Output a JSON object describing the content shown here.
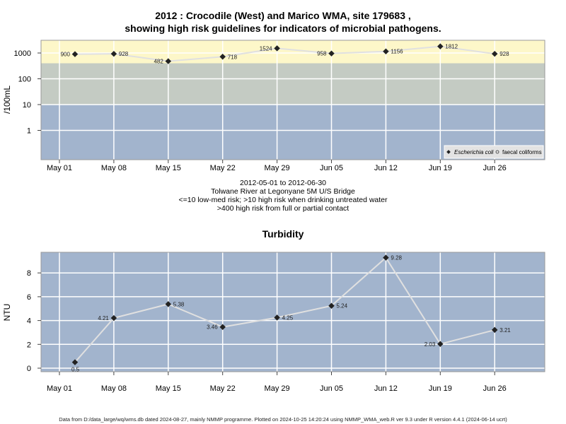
{
  "top": {
    "title_line1": "2012 : Crocodile (West) and Marico WMA, site 179683 ,",
    "title_line2": "showing high risk guidelines for indicators of microbial pathogens.",
    "caption": [
      "2012-05-01 to 2012-06-30",
      "Tolwane River at Legonyane 5M U/S Bridge",
      "<=10 low-med risk; >10 high risk when drinking untreated water",
      ">400 high risk from full or partial contact"
    ]
  },
  "bottom": {
    "title": "Turbidity"
  },
  "footer": "Data from D:/data_large/wq/wms.db dated 2024-08-27, mainly NMMP programme. Plotted on 2024-10-25 14:20:24 using NMMP_WMA_web.R ver 9.3 under R version 4.4.1 (2024-06-14 ucrt)",
  "colors": {
    "band_low": "#a2b4cd",
    "band_mid": "#c4cbc3",
    "band_high": "#fdf7c9",
    "plot_bg": "#a2b4cd",
    "grid": "#ffffff",
    "line": "#e0e0e0",
    "point": "#222222"
  },
  "chart_data": [
    {
      "type": "line",
      "ylabel": "/100mL",
      "yscale": "log",
      "x_ticks": [
        "May 01",
        "May 08",
        "May 15",
        "May 22",
        "May 29",
        "Jun 05",
        "Jun 12",
        "Jun 19",
        "Jun 26"
      ],
      "y_ticks": [
        "1",
        "10",
        "100",
        "1000"
      ],
      "risk_bands": [
        {
          "from": 0,
          "to": 10,
          "color": "#a2b4cd"
        },
        {
          "from": 10,
          "to": 400,
          "color": "#c4cbc3"
        },
        {
          "from": 400,
          "to": 3500,
          "color": "#fdf7c9"
        }
      ],
      "legend": {
        "placement": "bottom-right",
        "entries": [
          "Escherichia coli",
          "faecal coliforms"
        ]
      },
      "series": [
        {
          "name": "Escherichia coli",
          "points": [
            {
              "x": "2012-05-03",
              "y": 900,
              "label": "900",
              "label_side": "left"
            },
            {
              "x": "2012-05-08",
              "y": 928,
              "label": "928",
              "label_side": "right"
            },
            {
              "x": "2012-05-15",
              "y": 482,
              "label": "482",
              "label_side": "left"
            },
            {
              "x": "2012-05-22",
              "y": 718,
              "label": "718",
              "label_side": "right"
            },
            {
              "x": "2012-05-29",
              "y": 1524,
              "label": "1524",
              "label_side": "left"
            },
            {
              "x": "2012-06-05",
              "y": 958,
              "label": "958",
              "label_side": "left"
            },
            {
              "x": "2012-06-12",
              "y": 1156,
              "label": "1156",
              "label_side": "right"
            },
            {
              "x": "2012-06-19",
              "y": 1812,
              "label": "1812",
              "label_side": "right"
            },
            {
              "x": "2012-06-26",
              "y": 928,
              "label": "928",
              "label_side": "right"
            }
          ]
        }
      ]
    },
    {
      "type": "line",
      "title": "Turbidity",
      "ylabel": "NTU",
      "ylim": [
        -0.3,
        9.8
      ],
      "x_ticks": [
        "May 01",
        "May 08",
        "May 15",
        "May 22",
        "May 29",
        "Jun 05",
        "Jun 12",
        "Jun 19",
        "Jun 26"
      ],
      "y_ticks": [
        "0",
        "2",
        "4",
        "6",
        "8"
      ],
      "series": [
        {
          "points": [
            {
              "x": "2012-05-03",
              "y": 0.5,
              "label": "0.5",
              "label_side": "below"
            },
            {
              "x": "2012-05-08",
              "y": 4.21,
              "label": "4.21",
              "label_side": "left"
            },
            {
              "x": "2012-05-15",
              "y": 5.38,
              "label": "5.38",
              "label_side": "right"
            },
            {
              "x": "2012-05-22",
              "y": 3.46,
              "label": "3.46",
              "label_side": "left"
            },
            {
              "x": "2012-05-29",
              "y": 4.25,
              "label": "4.25",
              "label_side": "right"
            },
            {
              "x": "2012-06-05",
              "y": 5.24,
              "label": "5.24",
              "label_side": "right"
            },
            {
              "x": "2012-06-12",
              "y": 9.28,
              "label": "9.28",
              "label_side": "right"
            },
            {
              "x": "2012-06-19",
              "y": 2.03,
              "label": "2.03",
              "label_side": "left"
            },
            {
              "x": "2012-06-26",
              "y": 3.21,
              "label": "3.21",
              "label_side": "right"
            }
          ]
        }
      ]
    }
  ]
}
